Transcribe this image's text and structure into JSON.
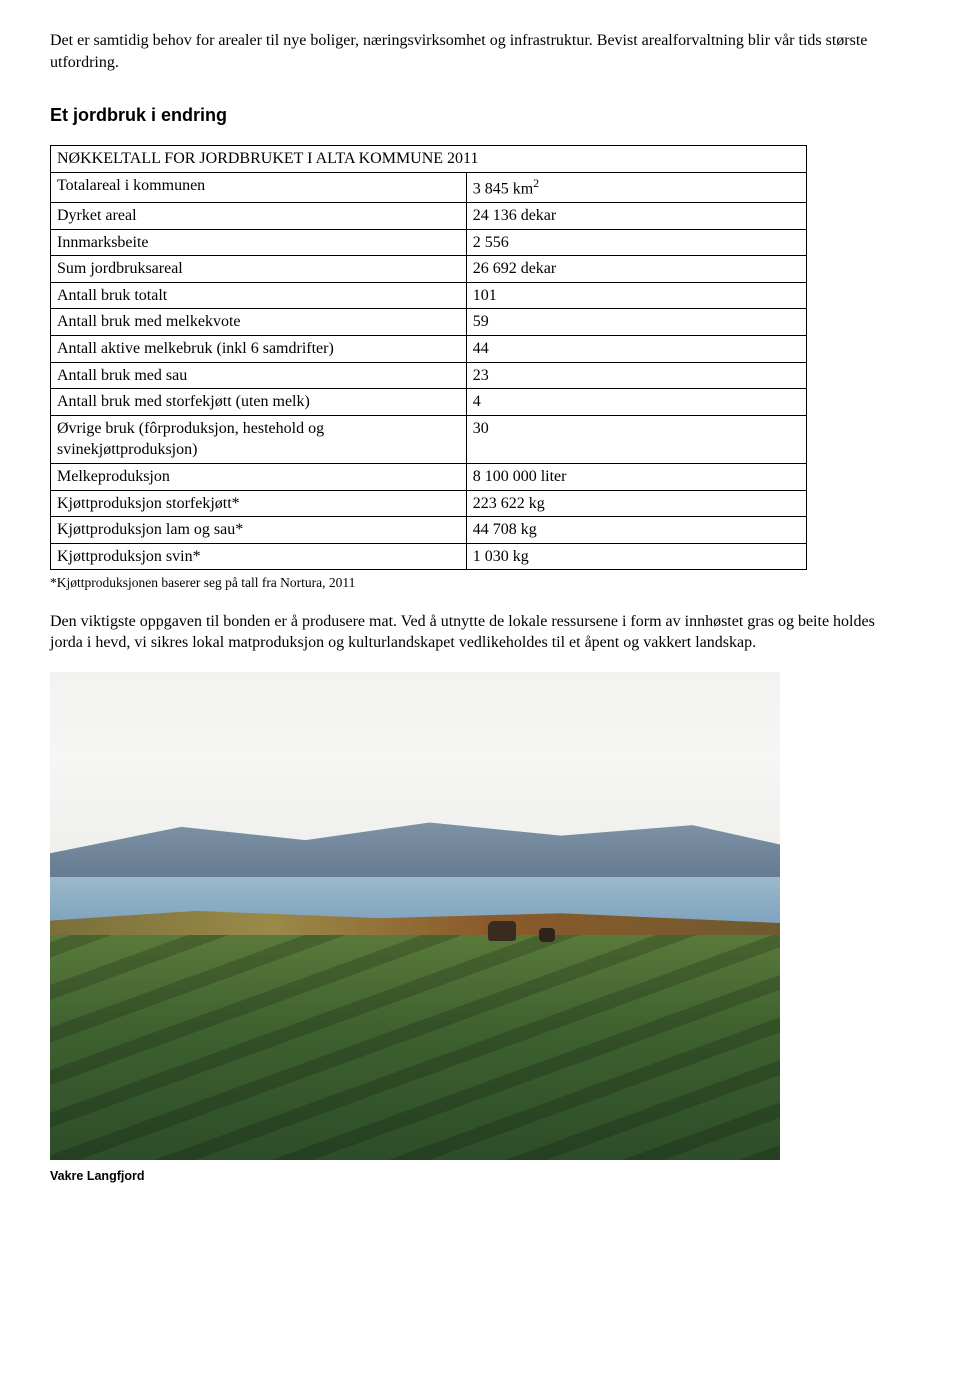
{
  "intro_paragraph": "Det er samtidig behov for arealer til nye boliger, næringsvirksomhet og infrastruktur. Bevist arealforvaltning blir vår tids største utfordring.",
  "heading": "Et jordbruk i endring",
  "table": {
    "title": "NØKKELTALL FOR JORDBRUKET I ALTA KOMMUNE 2011",
    "rows": [
      {
        "label": "Totalareal i kommunen",
        "value": "3 845 km",
        "sup": "2"
      },
      {
        "label": "Dyrket areal",
        "value": "24 136 dekar"
      },
      {
        "label": "Innmarksbeite",
        "value": "2 556"
      },
      {
        "label": "Sum jordbruksareal",
        "value": "26 692 dekar"
      },
      {
        "label": "Antall bruk totalt",
        "value": "101"
      },
      {
        "label": "Antall bruk med melkekvote",
        "value": "59"
      },
      {
        "label": "Antall aktive melkebruk (inkl 6 samdrifter)",
        "value": "44"
      },
      {
        "label": "Antall bruk med sau",
        "value": "23"
      },
      {
        "label": "Antall bruk med storfekjøtt (uten melk)",
        "value": "4"
      },
      {
        "label": "Øvrige bruk (fôrproduksjon, hestehold og svinekjøttproduksjon)",
        "value": "30"
      },
      {
        "label": "Melkeproduksjon",
        "value": "8 100 000 liter"
      },
      {
        "label": "Kjøttproduksjon storfekjøtt*",
        "value": "223 622 kg"
      },
      {
        "label": "Kjøttproduksjon lam og sau*",
        "value": "44 708 kg"
      },
      {
        "label": "Kjøttproduksjon svin*",
        "value": "1 030 kg"
      }
    ]
  },
  "footnote": "*Kjøttproduksjonen baserer seg på tall fra Nortura, 2011",
  "conclusion": "Den viktigste oppgaven til bonden er å produsere mat. Ved å utnytte de lokale ressursene i form av innhøstet gras og beite holdes jorda i hevd, vi sikres lokal matproduksjon og kulturlandskapet vedlikeholdes til et åpent og vakkert landskap.",
  "caption": "Vakre Langfjord"
}
